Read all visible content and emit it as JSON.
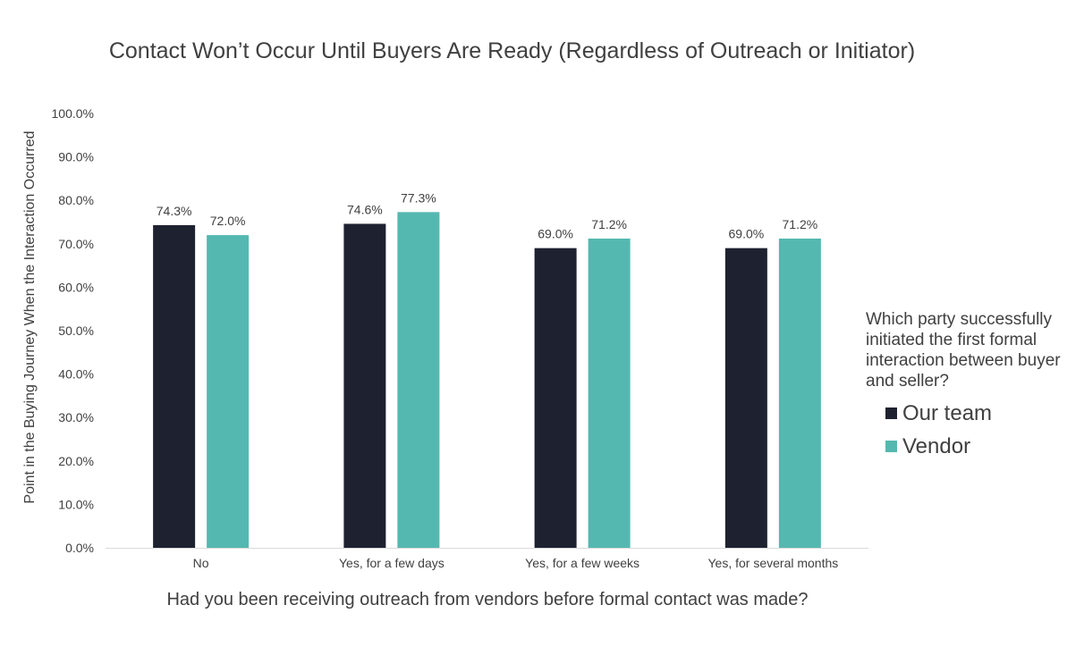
{
  "chart_data": {
    "type": "bar",
    "title": "Contact Won’t Occur Until Buyers Are Ready (Regardless of Outreach or Initiator)",
    "xlabel": "Had you been receiving outreach from vendors before formal contact was made?",
    "ylabel": "Point in the Buying Journey When the Interaction Occurred",
    "categories": [
      "No",
      "Yes, for a few days",
      "Yes, for a few weeks",
      "Yes, for several months"
    ],
    "ylim": [
      0,
      100
    ],
    "yticks": [
      "0.0%",
      "10.0%",
      "20.0%",
      "30.0%",
      "40.0%",
      "50.0%",
      "60.0%",
      "70.0%",
      "80.0%",
      "90.0%",
      "100.0%"
    ],
    "grid": false,
    "legend": {
      "title": "Which party successfully initiated the first formal interaction between buyer and seller?",
      "placement": "right"
    },
    "series": [
      {
        "name": "Our team",
        "color": "#1e2230",
        "values": [
          74.3,
          74.6,
          69.0,
          69.0
        ],
        "labels": [
          "74.3%",
          "74.6%",
          "69.0%",
          "69.0%"
        ]
      },
      {
        "name": "Vendor",
        "color": "#55b8b0",
        "values": [
          72.0,
          77.3,
          71.2,
          71.2
        ],
        "labels": [
          "72.0%",
          "77.3%",
          "71.2%",
          "71.2%"
        ]
      }
    ]
  }
}
